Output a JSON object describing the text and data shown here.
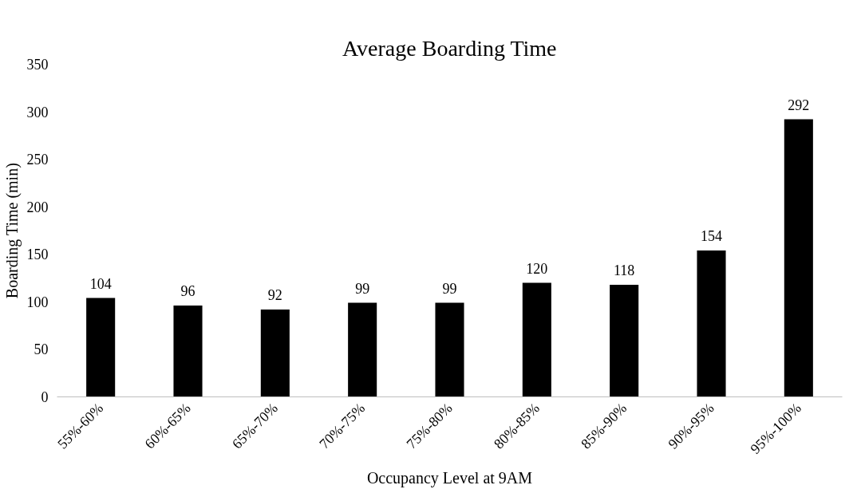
{
  "chart_data": {
    "type": "bar",
    "title": "Average Boarding Time",
    "xlabel": "Occupancy Level at 9AM",
    "ylabel": "Boarding Time (min)",
    "categories": [
      "55%-60%",
      "60%-65%",
      "65%-70%",
      "70%-75%",
      "75%-80%",
      "80%-85%",
      "85%-90%",
      "90%-95%",
      "95%-100%"
    ],
    "values": [
      104,
      96,
      92,
      99,
      99,
      120,
      118,
      154,
      292
    ],
    "color": "#000000",
    "ylim": [
      0,
      350
    ],
    "yticks": [
      0,
      50,
      100,
      150,
      200,
      250,
      300,
      350
    ],
    "grid": false,
    "data_labels": true
  }
}
